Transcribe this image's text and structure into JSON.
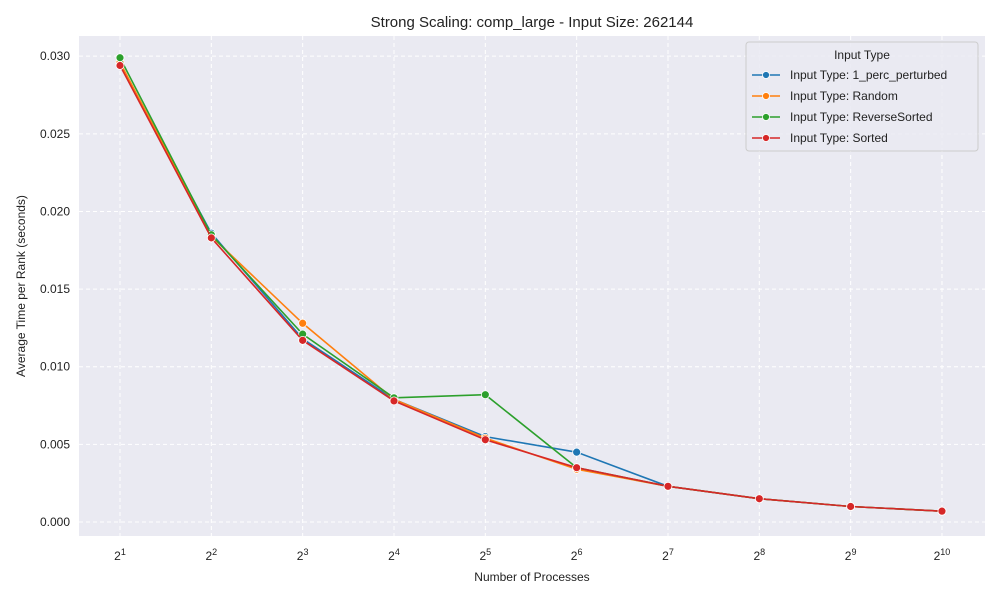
{
  "chart_data": {
    "type": "line",
    "title": "Strong Scaling: comp_large - Input Size: 262144",
    "xlabel": "Number of Processes",
    "ylabel": "Average Time per Rank (seconds)",
    "x_scale": "log2",
    "x": [
      2,
      4,
      8,
      16,
      32,
      64,
      128,
      256,
      512,
      1024
    ],
    "x_tick_labels": [
      {
        "base": "2",
        "exp": "1"
      },
      {
        "base": "2",
        "exp": "2"
      },
      {
        "base": "2",
        "exp": "3"
      },
      {
        "base": "2",
        "exp": "4"
      },
      {
        "base": "2",
        "exp": "5"
      },
      {
        "base": "2",
        "exp": "6"
      },
      {
        "base": "2",
        "exp": "7"
      },
      {
        "base": "2",
        "exp": "8"
      },
      {
        "base": "2",
        "exp": "9"
      },
      {
        "base": "2",
        "exp": "10"
      }
    ],
    "ylim": [
      -0.0009,
      0.0313
    ],
    "y_ticks": [
      0.0,
      0.005,
      0.01,
      0.015,
      0.02,
      0.025,
      0.03
    ],
    "y_tick_labels": [
      "0.000",
      "0.005",
      "0.010",
      "0.015",
      "0.020",
      "0.025",
      "0.030"
    ],
    "grid": true,
    "legend": {
      "title": "Input Type",
      "placement": "top-right"
    },
    "series": [
      {
        "name": "Input Type: 1_perc_perturbed",
        "color": "#1f77b4",
        "values": [
          0.0295,
          0.0186,
          0.0118,
          0.0079,
          0.0055,
          0.0045,
          0.0023,
          0.0015,
          0.001,
          0.0007
        ]
      },
      {
        "name": "Input Type: Random",
        "color": "#ff7f0e",
        "values": [
          0.0296,
          0.0184,
          0.0128,
          0.0079,
          0.0054,
          0.0034,
          0.0023,
          0.0015,
          0.001,
          0.0007
        ]
      },
      {
        "name": "Input Type: ReverseSorted",
        "color": "#2ca02c",
        "values": [
          0.0299,
          0.0185,
          0.0121,
          0.008,
          0.0082,
          0.0035,
          0.0023,
          0.0015,
          0.001,
          0.0007
        ]
      },
      {
        "name": "Input Type: Sorted",
        "color": "#d62728",
        "values": [
          0.0294,
          0.0183,
          0.0117,
          0.0078,
          0.0053,
          0.0035,
          0.0023,
          0.0015,
          0.001,
          0.0007
        ]
      }
    ]
  }
}
